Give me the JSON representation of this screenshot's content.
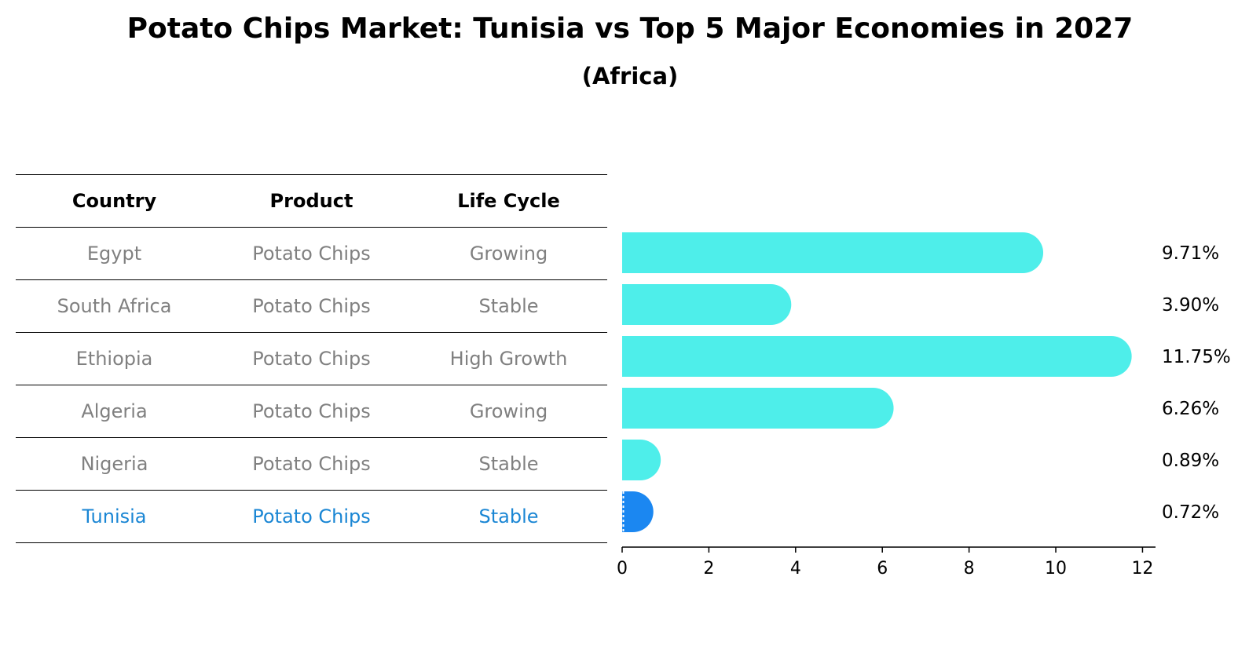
{
  "chart_data": {
    "type": "bar",
    "orientation": "horizontal",
    "title": "Potato Chips Market: Tunisia vs Top 5 Major Economies in 2027",
    "subtitle": "(Africa)",
    "table": {
      "columns": [
        "Country",
        "Product",
        "Life Cycle"
      ],
      "rows": [
        [
          "Egypt",
          "Potato Chips",
          "Growing"
        ],
        [
          "South Africa",
          "Potato Chips",
          "Stable"
        ],
        [
          "Ethiopia",
          "Potato Chips",
          "High Growth"
        ],
        [
          "Algeria",
          "Potato Chips",
          "Growing"
        ],
        [
          "Nigeria",
          "Potato Chips",
          "Stable"
        ],
        [
          "Tunisia",
          "Potato Chips",
          "Stable"
        ]
      ],
      "highlight_row": 5
    },
    "categories": [
      "Egypt",
      "South Africa",
      "Ethiopia",
      "Algeria",
      "Nigeria",
      "Tunisia"
    ],
    "values": [
      9.71,
      3.9,
      11.75,
      6.26,
      0.89,
      0.72
    ],
    "value_labels": [
      "9.71%",
      "3.90%",
      "11.75%",
      "6.26%",
      "0.89%",
      "0.72%"
    ],
    "xlim": [
      0,
      12.3
    ],
    "xticks": [
      0,
      2,
      4,
      6,
      8,
      10,
      12
    ],
    "colors": {
      "bar": "#4eeeea",
      "highlight_bar": "#1b87f1",
      "highlight_text": "#1a86d4",
      "muted_text": "#808080"
    },
    "grid": false
  }
}
